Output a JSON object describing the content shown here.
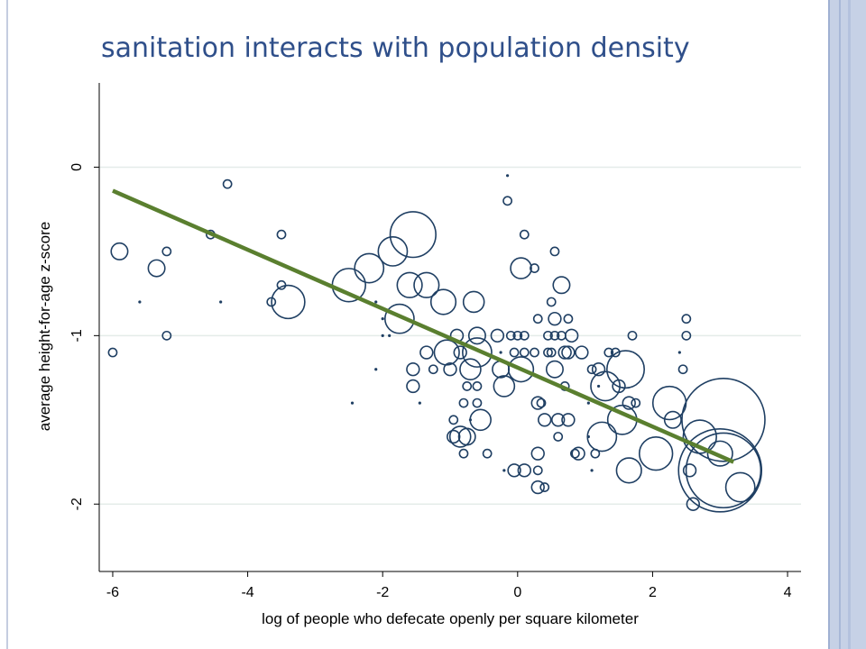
{
  "slide": {
    "title": "sanitation interacts with population density"
  },
  "chart_data": {
    "type": "scatter",
    "xlabel": "log of people who defecate openly per square kilometer",
    "ylabel": "average height-for-age z-score",
    "xlim": [
      -6.2,
      4.2
    ],
    "ylim": [
      -2.4,
      0.5
    ],
    "xticks": [
      "-6",
      "-4",
      "-2",
      "0",
      "2",
      "4"
    ],
    "yticks": [
      "0",
      "-1",
      "-2"
    ],
    "grid": true,
    "marker_color": "#1f3f63",
    "fit_color": "#5a7f2f",
    "fit_line": {
      "x": [
        -6.0,
        3.2
      ],
      "y": [
        -0.14,
        -1.75
      ]
    },
    "points": [
      {
        "x": -6.0,
        "y": -1.1,
        "s": 1
      },
      {
        "x": -5.9,
        "y": -0.5,
        "s": 2
      },
      {
        "x": -5.6,
        "y": -0.8,
        "s": 0.5
      },
      {
        "x": -5.35,
        "y": -0.6,
        "s": 2
      },
      {
        "x": -5.2,
        "y": -0.5,
        "s": 1
      },
      {
        "x": -5.2,
        "y": -1.0,
        "s": 1
      },
      {
        "x": -4.55,
        "y": -0.4,
        "s": 1
      },
      {
        "x": -4.4,
        "y": -0.8,
        "s": 0.5
      },
      {
        "x": -4.3,
        "y": -0.1,
        "s": 1
      },
      {
        "x": -3.5,
        "y": -0.4,
        "s": 1
      },
      {
        "x": -3.5,
        "y": -0.7,
        "s": 1
      },
      {
        "x": -3.65,
        "y": -0.8,
        "s": 1
      },
      {
        "x": -3.4,
        "y": -0.8,
        "s": 4
      },
      {
        "x": -2.5,
        "y": -0.7,
        "s": 4
      },
      {
        "x": -2.45,
        "y": -1.4,
        "s": 0.5
      },
      {
        "x": -2.2,
        "y": -0.6,
        "s": 3.5
      },
      {
        "x": -2.1,
        "y": -0.8,
        "s": 0.5
      },
      {
        "x": -2.1,
        "y": -1.2,
        "s": 0.5
      },
      {
        "x": -2.0,
        "y": -0.9,
        "s": 0.5
      },
      {
        "x": -2.0,
        "y": -1.0,
        "s": 0.5
      },
      {
        "x": -1.9,
        "y": -1.0,
        "s": 0.5
      },
      {
        "x": -1.85,
        "y": -0.5,
        "s": 3.5
      },
      {
        "x": -1.75,
        "y": -0.9,
        "s": 3.5
      },
      {
        "x": -1.6,
        "y": -0.7,
        "s": 3
      },
      {
        "x": -1.55,
        "y": -0.4,
        "s": 5.5
      },
      {
        "x": -1.55,
        "y": -1.2,
        "s": 1.5
      },
      {
        "x": -1.55,
        "y": -1.3,
        "s": 1.5
      },
      {
        "x": -1.45,
        "y": -1.4,
        "s": 0.5
      },
      {
        "x": -1.35,
        "y": -0.7,
        "s": 3
      },
      {
        "x": -1.35,
        "y": -1.1,
        "s": 1.5
      },
      {
        "x": -1.25,
        "y": -1.2,
        "s": 1
      },
      {
        "x": -1.1,
        "y": -0.8,
        "s": 3
      },
      {
        "x": -1.05,
        "y": -1.1,
        "s": 3
      },
      {
        "x": -1.0,
        "y": -1.2,
        "s": 1.5
      },
      {
        "x": -0.95,
        "y": -1.5,
        "s": 1
      },
      {
        "x": -0.95,
        "y": -1.6,
        "s": 1.5
      },
      {
        "x": -0.9,
        "y": -1.0,
        "s": 1.5
      },
      {
        "x": -0.85,
        "y": -1.1,
        "s": 1.5
      },
      {
        "x": -0.85,
        "y": -1.6,
        "s": 2.5
      },
      {
        "x": -0.8,
        "y": -1.4,
        "s": 1
      },
      {
        "x": -0.8,
        "y": -1.7,
        "s": 1
      },
      {
        "x": -0.75,
        "y": -1.3,
        "s": 1
      },
      {
        "x": -0.75,
        "y": -1.6,
        "s": 2
      },
      {
        "x": -0.7,
        "y": -1.2,
        "s": 2.5
      },
      {
        "x": -0.7,
        "y": -1.5,
        "s": 0.5
      },
      {
        "x": -0.65,
        "y": -0.8,
        "s": 2.5
      },
      {
        "x": -0.6,
        "y": -1.0,
        "s": 2
      },
      {
        "x": -0.6,
        "y": -1.1,
        "s": 3.5
      },
      {
        "x": -0.6,
        "y": -1.3,
        "s": 1
      },
      {
        "x": -0.6,
        "y": -1.4,
        "s": 1
      },
      {
        "x": -0.55,
        "y": -1.5,
        "s": 2.5
      },
      {
        "x": -0.45,
        "y": -1.7,
        "s": 1
      },
      {
        "x": -0.3,
        "y": -1.0,
        "s": 1.5
      },
      {
        "x": -0.25,
        "y": -1.1,
        "s": 0.5
      },
      {
        "x": -0.25,
        "y": -1.2,
        "s": 2
      },
      {
        "x": -0.2,
        "y": -1.3,
        "s": 2.5
      },
      {
        "x": -0.2,
        "y": -1.8,
        "s": 0.5
      },
      {
        "x": -0.15,
        "y": -0.05,
        "s": 0.5
      },
      {
        "x": -0.15,
        "y": -0.2,
        "s": 1
      },
      {
        "x": -0.1,
        "y": -1.0,
        "s": 1
      },
      {
        "x": -0.05,
        "y": -1.1,
        "s": 1
      },
      {
        "x": -0.05,
        "y": -1.8,
        "s": 1.5
      },
      {
        "x": 0.0,
        "y": -1.0,
        "s": 1
      },
      {
        "x": 0.05,
        "y": -0.6,
        "s": 2.5
      },
      {
        "x": 0.05,
        "y": -1.2,
        "s": 3
      },
      {
        "x": 0.1,
        "y": -0.4,
        "s": 1
      },
      {
        "x": 0.1,
        "y": -1.0,
        "s": 1
      },
      {
        "x": 0.1,
        "y": -1.1,
        "s": 1
      },
      {
        "x": 0.1,
        "y": -1.8,
        "s": 1.5
      },
      {
        "x": 0.25,
        "y": -0.6,
        "s": 1
      },
      {
        "x": 0.25,
        "y": -1.1,
        "s": 1
      },
      {
        "x": 0.3,
        "y": -0.9,
        "s": 1
      },
      {
        "x": 0.3,
        "y": -1.4,
        "s": 1.5
      },
      {
        "x": 0.3,
        "y": -1.7,
        "s": 1.5
      },
      {
        "x": 0.3,
        "y": -1.8,
        "s": 1
      },
      {
        "x": 0.3,
        "y": -1.9,
        "s": 1.5
      },
      {
        "x": 0.35,
        "y": -1.4,
        "s": 1
      },
      {
        "x": 0.4,
        "y": -1.5,
        "s": 1.5
      },
      {
        "x": 0.4,
        "y": -1.9,
        "s": 1
      },
      {
        "x": 0.45,
        "y": -1.0,
        "s": 1
      },
      {
        "x": 0.45,
        "y": -1.1,
        "s": 1
      },
      {
        "x": 0.5,
        "y": -0.8,
        "s": 1
      },
      {
        "x": 0.5,
        "y": -1.1,
        "s": 1
      },
      {
        "x": 0.55,
        "y": -1.0,
        "s": 1
      },
      {
        "x": 0.55,
        "y": -0.5,
        "s": 1
      },
      {
        "x": 0.55,
        "y": -0.9,
        "s": 1.5
      },
      {
        "x": 0.55,
        "y": -1.2,
        "s": 2
      },
      {
        "x": 0.6,
        "y": -1.5,
        "s": 1.5
      },
      {
        "x": 0.6,
        "y": -1.6,
        "s": 1
      },
      {
        "x": 0.65,
        "y": -0.7,
        "s": 2
      },
      {
        "x": 0.65,
        "y": -1.0,
        "s": 1
      },
      {
        "x": 0.7,
        "y": -1.1,
        "s": 1.5
      },
      {
        "x": 0.7,
        "y": -1.3,
        "s": 1
      },
      {
        "x": 0.75,
        "y": -0.9,
        "s": 1
      },
      {
        "x": 0.75,
        "y": -1.1,
        "s": 1.5
      },
      {
        "x": 0.75,
        "y": -1.5,
        "s": 1.5
      },
      {
        "x": 0.8,
        "y": -1.0,
        "s": 1.5
      },
      {
        "x": 0.85,
        "y": -1.7,
        "s": 1
      },
      {
        "x": 0.9,
        "y": -1.7,
        "s": 1.5
      },
      {
        "x": 0.95,
        "y": -1.1,
        "s": 1.5
      },
      {
        "x": 1.05,
        "y": -1.4,
        "s": 0.5
      },
      {
        "x": 1.05,
        "y": -1.6,
        "s": 0.5
      },
      {
        "x": 1.1,
        "y": -1.2,
        "s": 1
      },
      {
        "x": 1.1,
        "y": -1.8,
        "s": 0.5
      },
      {
        "x": 1.15,
        "y": -1.7,
        "s": 1
      },
      {
        "x": 1.2,
        "y": -1.2,
        "s": 1.5
      },
      {
        "x": 1.2,
        "y": -1.3,
        "s": 0.5
      },
      {
        "x": 1.25,
        "y": -1.6,
        "s": 3.5
      },
      {
        "x": 1.3,
        "y": -1.3,
        "s": 3.5
      },
      {
        "x": 1.35,
        "y": -1.1,
        "s": 1
      },
      {
        "x": 1.45,
        "y": -1.1,
        "s": 1
      },
      {
        "x": 1.5,
        "y": -1.3,
        "s": 1.5
      },
      {
        "x": 1.55,
        "y": -1.5,
        "s": 3.5
      },
      {
        "x": 1.6,
        "y": -1.2,
        "s": 4.5
      },
      {
        "x": 1.65,
        "y": -1.8,
        "s": 3
      },
      {
        "x": 1.65,
        "y": -1.4,
        "s": 1.5
      },
      {
        "x": 1.7,
        "y": -1.0,
        "s": 1
      },
      {
        "x": 1.75,
        "y": -1.4,
        "s": 1
      },
      {
        "x": 2.05,
        "y": -1.7,
        "s": 4
      },
      {
        "x": 2.25,
        "y": -1.4,
        "s": 4
      },
      {
        "x": 2.3,
        "y": -1.5,
        "s": 2
      },
      {
        "x": 2.4,
        "y": -1.1,
        "s": 0.5
      },
      {
        "x": 2.45,
        "y": -1.2,
        "s": 1
      },
      {
        "x": 2.5,
        "y": -0.9,
        "s": 1
      },
      {
        "x": 2.5,
        "y": -1.0,
        "s": 1
      },
      {
        "x": 2.55,
        "y": -1.8,
        "s": 1.5
      },
      {
        "x": 2.6,
        "y": -2.0,
        "s": 1.5
      },
      {
        "x": 2.7,
        "y": -1.6,
        "s": 4
      },
      {
        "x": 3.0,
        "y": -1.7,
        "s": 3
      },
      {
        "x": 3.0,
        "y": -1.8,
        "s": 10
      },
      {
        "x": 3.05,
        "y": -1.5,
        "s": 10
      },
      {
        "x": 3.05,
        "y": -1.8,
        "s": 9
      },
      {
        "x": 3.3,
        "y": -1.9,
        "s": 3.5
      }
    ]
  }
}
